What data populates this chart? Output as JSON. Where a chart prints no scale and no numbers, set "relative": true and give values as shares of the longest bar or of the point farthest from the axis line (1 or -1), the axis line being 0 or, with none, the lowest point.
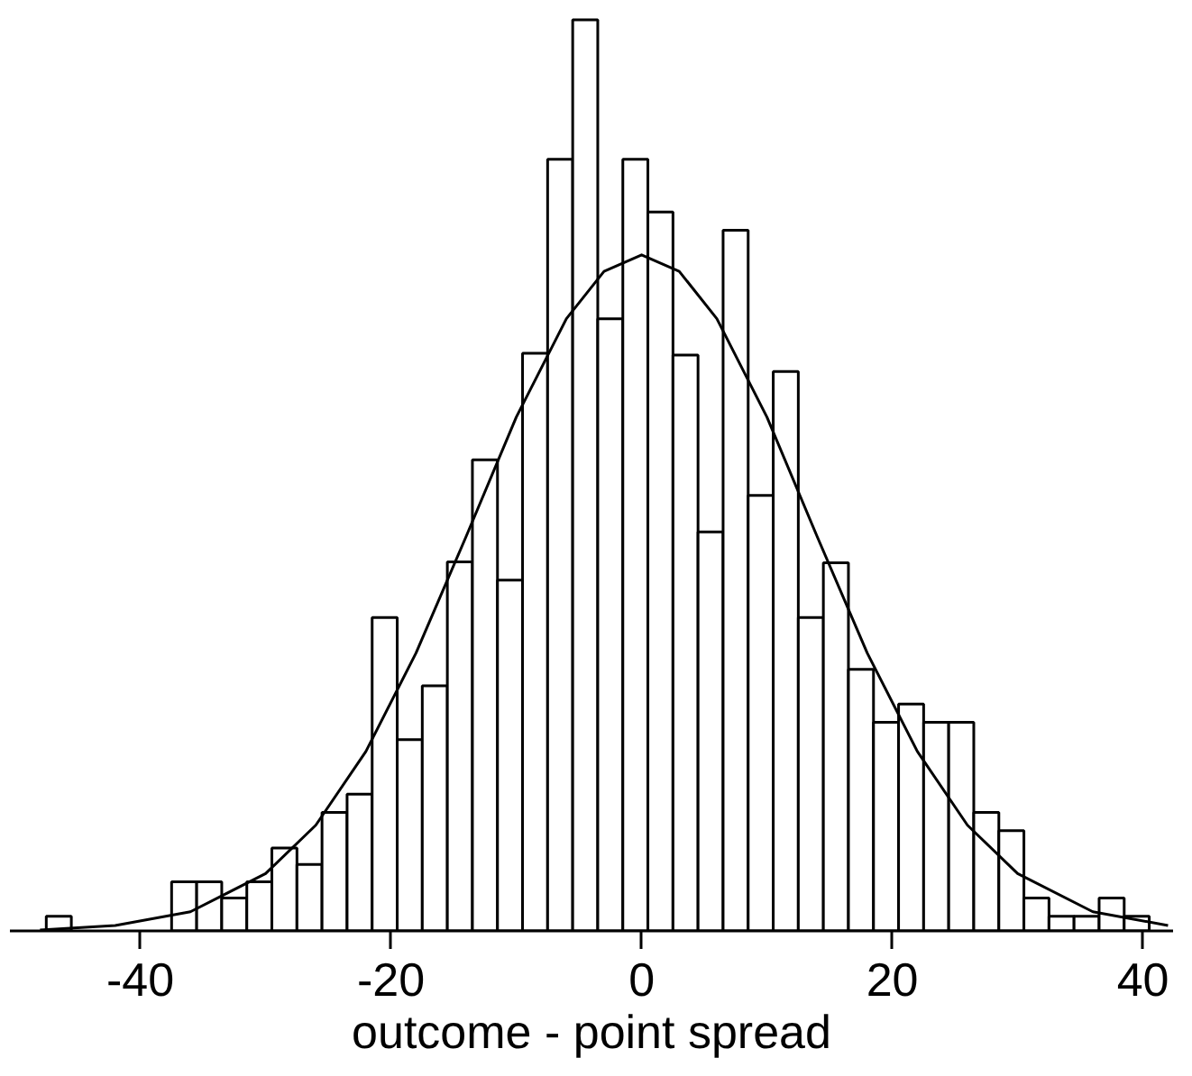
{
  "chart_data": {
    "type": "histogram",
    "relative": true,
    "xlabel": "outcome - point spread",
    "xlim": [
      -50.4,
      42.4
    ],
    "xticks": [
      -40,
      -20,
      0,
      20,
      40
    ],
    "series": [
      {
        "color": "#ffffff",
        "bins": [
          -47.5,
          -45.5,
          -43.5,
          -41.5,
          -39.5,
          -37.5,
          -35.5,
          -33.5,
          -31.5,
          -29.5,
          -27.5,
          -25.5,
          -23.5,
          -21.5,
          -19.5,
          -17.5,
          -15.5,
          -13.5,
          -11.5,
          -9.5,
          -7.5,
          -5.5,
          -3.5,
          -1.5,
          0.5,
          2.5,
          4.5,
          6.5,
          8.5,
          10.5,
          12.5,
          14.5,
          16.5,
          18.5,
          20.5,
          22.5,
          24.5,
          26.5,
          28.5,
          30.5,
          32.5,
          34.5,
          36.5,
          38.5,
          40.5
        ],
        "values": [
          0.016,
          0,
          0,
          0,
          0,
          0.054,
          0.054,
          0.036,
          0.054,
          0.091,
          0.073,
          0.13,
          0.15,
          0.344,
          0.21,
          0.269,
          0.405,
          0.517,
          0.385,
          0.634,
          0.847,
          1.0,
          0.672,
          0.847,
          0.789,
          0.632,
          0.438,
          0.769,
          0.478,
          0.614,
          0.344,
          0.404,
          0.287,
          0.229,
          0.249,
          0.229,
          0.229,
          0.13,
          0.11,
          0.036,
          0.016,
          0.016,
          0.036,
          0.016
        ]
      },
      {
        "type": "line",
        "color": "#000000",
        "x": [
          -48,
          -42,
          -36,
          -30,
          -26,
          -22,
          -18,
          -14,
          -10,
          -6,
          -3,
          0,
          3,
          6,
          10,
          14,
          18,
          22,
          26,
          30,
          36,
          42
        ],
        "values": [
          0.001,
          0.006,
          0.021,
          0.063,
          0.116,
          0.197,
          0.305,
          0.433,
          0.564,
          0.672,
          0.724,
          0.742,
          0.724,
          0.672,
          0.564,
          0.433,
          0.305,
          0.197,
          0.116,
          0.063,
          0.021,
          0.006
        ]
      }
    ]
  }
}
